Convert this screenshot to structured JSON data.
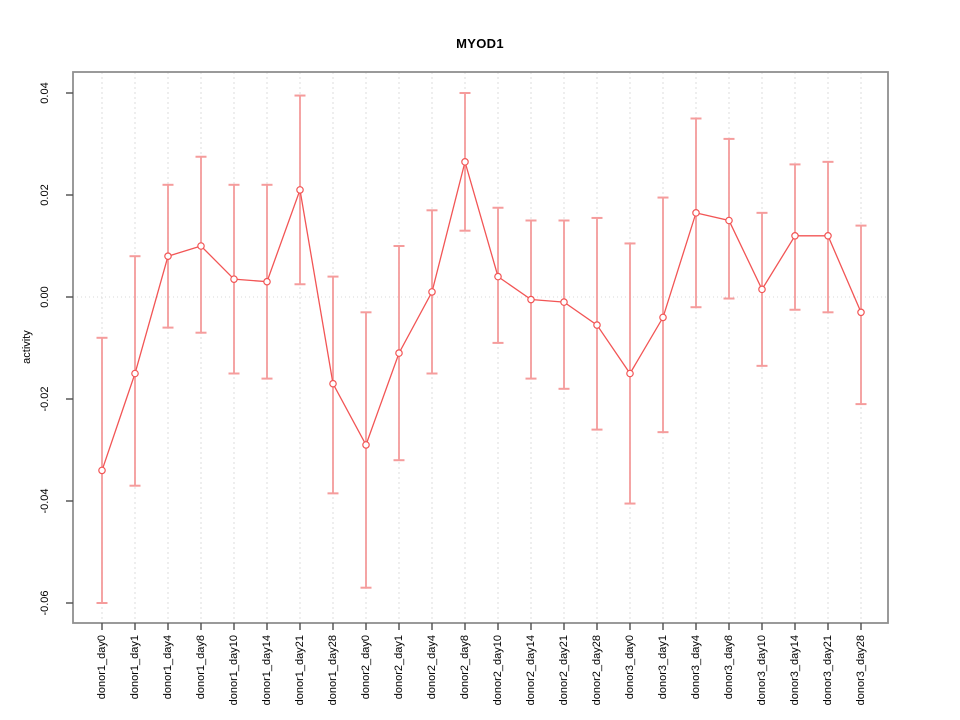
{
  "title": "MYOD1",
  "chart_data": {
    "type": "line",
    "title": "MYOD1",
    "xlabel": "",
    "ylabel": "activity",
    "legend_position": "none",
    "grid": {
      "vertical": "dashed-per-category",
      "horizontal": "dotted-at-zero"
    },
    "ylim": [
      -0.064,
      0.0445
    ],
    "ytick_labels": [
      "0.04",
      "0.02",
      "0.00",
      "-0.02",
      "-0.04",
      "-0.06"
    ],
    "ytick_values": [
      0.04,
      0.02,
      0.0,
      -0.02,
      -0.04,
      -0.06
    ],
    "categories": [
      "donor1_day0",
      "donor1_day1",
      "donor1_day4",
      "donor1_day8",
      "donor1_day10",
      "donor1_day14",
      "donor1_day21",
      "donor1_day28",
      "donor2_day0",
      "donor2_day1",
      "donor2_day4",
      "donor2_day8",
      "donor2_day10",
      "donor2_day14",
      "donor2_day21",
      "donor2_day28",
      "donor3_day0",
      "donor3_day1",
      "donor3_day4",
      "donor3_day8",
      "donor3_day10",
      "donor3_day14",
      "donor3_day21",
      "donor3_day28"
    ],
    "series": [
      {
        "name": "activity",
        "marker": "open-circle",
        "values": [
          -0.034,
          -0.015,
          0.008,
          0.01,
          0.0035,
          0.003,
          0.021,
          -0.017,
          -0.029,
          -0.011,
          0.001,
          0.0265,
          0.004,
          -0.0005,
          -0.001,
          -0.0055,
          -0.015,
          -0.004,
          0.0165,
          0.015,
          0.0015,
          0.012,
          0.012,
          -0.003
        ],
        "error_low": [
          -0.06,
          -0.037,
          -0.006,
          -0.007,
          -0.015,
          -0.016,
          0.0025,
          -0.0385,
          -0.057,
          -0.032,
          -0.015,
          0.013,
          -0.009,
          -0.016,
          -0.018,
          -0.026,
          -0.0405,
          -0.0265,
          -0.002,
          -0.0003,
          -0.0135,
          -0.0025,
          -0.003,
          -0.021
        ],
        "error_high": [
          -0.008,
          0.008,
          0.022,
          0.0275,
          0.022,
          0.022,
          0.0395,
          0.004,
          -0.003,
          0.01,
          0.017,
          0.04,
          0.0175,
          0.015,
          0.015,
          0.0155,
          0.0105,
          0.0195,
          0.035,
          0.031,
          0.0165,
          0.026,
          0.0265,
          0.014
        ]
      }
    ],
    "colors": {
      "series_line": "#F25555",
      "marker": "#F25555",
      "error_bar": "#F59C9C",
      "gridline": "#DEDEDE",
      "zero_line": "#D8D8D8",
      "axis_box": "#8F8F8F",
      "tick": "#4D4D4D",
      "label_text": "#000000"
    }
  }
}
